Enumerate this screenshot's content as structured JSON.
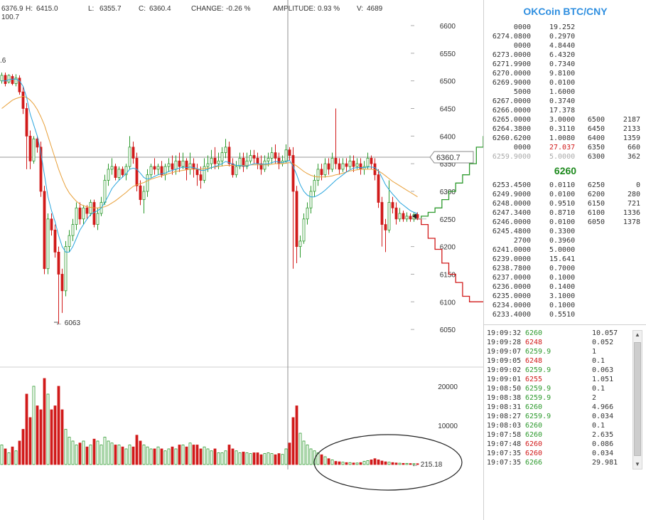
{
  "stats": {
    "open": "6376.9",
    "high_label": "H:",
    "high": "6415.0",
    "low_label": "L:",
    "low": "6355.7",
    "close_label": "C:",
    "close": "6360.4",
    "change_label": "CHANGE:",
    "change": "-0.26 %",
    "amplitude_label": "AMPLITUDE:",
    "amplitude": "0.93 %",
    "volume_label": "V:",
    "volume": "4689",
    "line2": "100.7",
    "line3": ".6"
  },
  "crosshair_price": "6360.7",
  "low_marker": "← 6063",
  "volume_marker": "← 215.18",
  "colors": {
    "up": "#2d9a2d",
    "down": "#d11a1a",
    "ma_fast": "#2aa6de",
    "ma_slow": "#e8a03a",
    "title": "#2f8fe0"
  },
  "chart_data": {
    "type": "candlestick",
    "price_ticks": [
      6600,
      6550,
      6500,
      6450,
      6400,
      6350,
      6300,
      6250,
      6200,
      6150,
      6100,
      6050
    ],
    "volume_ticks": [
      20000,
      10000
    ],
    "candles": [
      [
        6500,
        6510,
        6495,
        6515
      ],
      [
        6510,
        6495,
        6490,
        6515
      ],
      [
        6498,
        6510,
        6495,
        6512
      ],
      [
        6508,
        6495,
        6492,
        6512
      ],
      [
        6495,
        6505,
        6490,
        6512
      ],
      [
        6505,
        6480,
        6475,
        6510
      ],
      [
        6480,
        6450,
        6440,
        6490
      ],
      [
        6450,
        6400,
        6340,
        6460
      ],
      [
        6400,
        6355,
        6340,
        6410
      ],
      [
        6355,
        6395,
        6350,
        6400
      ],
      [
        6395,
        6380,
        6370,
        6400
      ],
      [
        6380,
        6300,
        6290,
        6390
      ],
      [
        6300,
        6160,
        6150,
        6310
      ],
      [
        6160,
        6250,
        6150,
        6260
      ],
      [
        6250,
        6230,
        6220,
        6260
      ],
      [
        6230,
        6190,
        6180,
        6240
      ],
      [
        6190,
        6150,
        6060,
        6200
      ],
      [
        6150,
        6120,
        6080,
        6160
      ],
      [
        6120,
        6200,
        6110,
        6210
      ],
      [
        6200,
        6220,
        6190,
        6230
      ],
      [
        6220,
        6240,
        6210,
        6250
      ],
      [
        6240,
        6270,
        6230,
        6280
      ],
      [
        6270,
        6250,
        6240,
        6280
      ],
      [
        6250,
        6270,
        6240,
        6275
      ],
      [
        6270,
        6260,
        6250,
        6275
      ],
      [
        6260,
        6280,
        6255,
        6285
      ],
      [
        6280,
        6240,
        6235,
        6285
      ],
      [
        6240,
        6260,
        6230,
        6270
      ],
      [
        6260,
        6280,
        6255,
        6290
      ],
      [
        6280,
        6320,
        6275,
        6330
      ],
      [
        6320,
        6340,
        6310,
        6350
      ],
      [
        6340,
        6345,
        6330,
        6360
      ],
      [
        6345,
        6325,
        6320,
        6350
      ],
      [
        6325,
        6340,
        6320,
        6345
      ],
      [
        6340,
        6330,
        6325,
        6345
      ],
      [
        6330,
        6345,
        6320,
        6350
      ],
      [
        6345,
        6380,
        6340,
        6400
      ],
      [
        6380,
        6360,
        6350,
        6390
      ],
      [
        6360,
        6310,
        6300,
        6370
      ],
      [
        6310,
        6285,
        6275,
        6320
      ],
      [
        6285,
        6300,
        6260,
        6310
      ],
      [
        6300,
        6330,
        6290,
        6340
      ],
      [
        6330,
        6345,
        6325,
        6350
      ],
      [
        6345,
        6340,
        6330,
        6360
      ],
      [
        6340,
        6345,
        6330,
        6350
      ],
      [
        6345,
        6330,
        6325,
        6355
      ],
      [
        6330,
        6345,
        6320,
        6350
      ],
      [
        6345,
        6350,
        6335,
        6360
      ],
      [
        6350,
        6340,
        6330,
        6365
      ],
      [
        6340,
        6355,
        6330,
        6365
      ],
      [
        6355,
        6345,
        6335,
        6370
      ],
      [
        6345,
        6355,
        6340,
        6370
      ],
      [
        6355,
        6340,
        6320,
        6360
      ],
      [
        6340,
        6350,
        6330,
        6370
      ],
      [
        6350,
        6340,
        6325,
        6360
      ],
      [
        6340,
        6330,
        6310,
        6350
      ],
      [
        6330,
        6320,
        6305,
        6345
      ],
      [
        6320,
        6345,
        6315,
        6360
      ],
      [
        6345,
        6350,
        6335,
        6365
      ],
      [
        6350,
        6360,
        6340,
        6375
      ],
      [
        6360,
        6350,
        6340,
        6380
      ],
      [
        6350,
        6355,
        6340,
        6370
      ],
      [
        6355,
        6370,
        6345,
        6380
      ],
      [
        6370,
        6380,
        6360,
        6395
      ],
      [
        6380,
        6350,
        6345,
        6390
      ],
      [
        6350,
        6330,
        6325,
        6360
      ],
      [
        6330,
        6345,
        6325,
        6355
      ],
      [
        6345,
        6360,
        6340,
        6370
      ],
      [
        6360,
        6345,
        6335,
        6370
      ],
      [
        6345,
        6355,
        6340,
        6370
      ],
      [
        6355,
        6365,
        6350,
        6375
      ],
      [
        6365,
        6360,
        6350,
        6375
      ],
      [
        6360,
        6350,
        6340,
        6370
      ],
      [
        6350,
        6340,
        6330,
        6365
      ],
      [
        6340,
        6355,
        6335,
        6365
      ],
      [
        6355,
        6360,
        6345,
        6370
      ],
      [
        6360,
        6370,
        6350,
        6380
      ],
      [
        6370,
        6360,
        6350,
        6385
      ],
      [
        6360,
        6350,
        6340,
        6370
      ],
      [
        6350,
        6355,
        6345,
        6365
      ],
      [
        6355,
        6375,
        6350,
        6385
      ],
      [
        6375,
        6365,
        6355,
        6380
      ],
      [
        6365,
        6300,
        6160,
        6380
      ],
      [
        6300,
        6200,
        6170,
        6310
      ],
      [
        6200,
        6210,
        6180,
        6220
      ],
      [
        6210,
        6250,
        6205,
        6260
      ],
      [
        6250,
        6270,
        6240,
        6280
      ],
      [
        6270,
        6300,
        6260,
        6310
      ],
      [
        6300,
        6320,
        6290,
        6330
      ],
      [
        6320,
        6340,
        6310,
        6350
      ],
      [
        6340,
        6330,
        6320,
        6350
      ],
      [
        6330,
        6350,
        6325,
        6360
      ],
      [
        6350,
        6340,
        6330,
        6360
      ],
      [
        6340,
        6360,
        6335,
        6370
      ],
      [
        6360,
        6350,
        6340,
        6450
      ],
      [
        6350,
        6340,
        6330,
        6360
      ],
      [
        6340,
        6350,
        6335,
        6360
      ],
      [
        6350,
        6345,
        6335,
        6360
      ],
      [
        6345,
        6355,
        6340,
        6365
      ],
      [
        6355,
        6345,
        6335,
        6365
      ],
      [
        6345,
        6350,
        6340,
        6360
      ],
      [
        6350,
        6340,
        6330,
        6360
      ],
      [
        6340,
        6345,
        6330,
        6355
      ],
      [
        6345,
        6360,
        6340,
        6370
      ],
      [
        6360,
        6350,
        6340,
        6365
      ],
      [
        6350,
        6330,
        6320,
        6360
      ],
      [
        6330,
        6280,
        6270,
        6340
      ],
      [
        6280,
        6240,
        6200,
        6290
      ],
      [
        6240,
        6230,
        6190,
        6250
      ],
      [
        6230,
        6280,
        6225,
        6320
      ],
      [
        6280,
        6270,
        6260,
        6290
      ],
      [
        6270,
        6250,
        6240,
        6280
      ],
      [
        6250,
        6260,
        6245,
        6270
      ],
      [
        6260,
        6250,
        6245,
        6265
      ],
      [
        6250,
        6255,
        6245,
        6262
      ],
      [
        6255,
        6250,
        6245,
        6260
      ],
      [
        6250,
        6258,
        6245,
        6262
      ],
      [
        6258,
        6252,
        6248,
        6262
      ]
    ],
    "volumes": [
      5000,
      4000,
      3000,
      4500,
      3500,
      6000,
      9000,
      18000,
      12000,
      20000,
      15000,
      14000,
      22000,
      18000,
      14000,
      15000,
      20000,
      14000,
      9000,
      7000,
      6000,
      5000,
      5500,
      6000,
      4500,
      5000,
      6500,
      6000,
      5000,
      7000,
      6000,
      5500,
      5000,
      5000,
      4500,
      4000,
      5000,
      4500,
      7500,
      6000,
      5000,
      4500,
      4000,
      4000,
      4500,
      4000,
      3500,
      4000,
      4500,
      4000,
      5000,
      5000,
      4500,
      5500,
      5000,
      5000,
      4000,
      4500,
      4000,
      3500,
      4000,
      3000,
      3000,
      3500,
      5000,
      4000,
      3500,
      3000,
      3200,
      3000,
      2800,
      3000,
      3000,
      2500,
      2800,
      3000,
      2800,
      2500,
      2800,
      2600,
      4000,
      5500,
      12000,
      15000,
      8000,
      6000,
      5000,
      4000,
      3500,
      3000,
      2500,
      2000,
      1500,
      1200,
      800,
      700,
      600,
      500,
      500,
      400,
      400,
      500,
      800,
      1000,
      1200,
      1500,
      1200,
      900,
      700,
      600,
      500,
      400,
      350,
      300,
      300,
      250,
      220,
      215
    ],
    "ma_fast": [
      6500,
      6500,
      6502,
      6503,
      6503,
      6500,
      6490,
      6470,
      6440,
      6420,
      6400,
      6370,
      6330,
      6290,
      6265,
      6245,
      6220,
      6200,
      6190,
      6190,
      6200,
      6215,
      6230,
      6240,
      6250,
      6258,
      6262,
      6265,
      6270,
      6280,
      6292,
      6305,
      6313,
      6320,
      6326,
      6332,
      6340,
      6342,
      6340,
      6333,
      6325,
      6322,
      6324,
      6327,
      6330,
      6332,
      6333,
      6336,
      6338,
      6340,
      6342,
      6344,
      6343,
      6344,
      6343,
      6341,
      6338,
      6338,
      6340,
      6343,
      6345,
      6347,
      6350,
      6354,
      6352,
      6349,
      6347,
      6347,
      6346,
      6346,
      6348,
      6350,
      6350,
      6349,
      6349,
      6350,
      6352,
      6354,
      6353,
      6352,
      6354,
      6356,
      6345,
      6330,
      6312,
      6300,
      6293,
      6290,
      6290,
      6293,
      6297,
      6302,
      6308,
      6314,
      6320,
      6325,
      6330,
      6335,
      6339,
      6342,
      6343,
      6343,
      6343,
      6344,
      6344,
      6343,
      6337,
      6325,
      6312,
      6303,
      6295,
      6288,
      6280,
      6275,
      6270,
      6265,
      6262,
      6260
    ],
    "ma_slow": [
      6450,
      6455,
      6460,
      6465,
      6468,
      6470,
      6472,
      6470,
      6465,
      6458,
      6448,
      6435,
      6420,
      6400,
      6380,
      6360,
      6340,
      6323,
      6308,
      6297,
      6289,
      6282,
      6277,
      6274,
      6272,
      6271,
      6270,
      6270,
      6271,
      6272,
      6275,
      6279,
      6283,
      6288,
      6293,
      6298,
      6304,
      6309,
      6312,
      6314,
      6316,
      6319,
      6322,
      6324,
      6326,
      6328,
      6330,
      6332,
      6334,
      6336,
      6337,
      6338,
      6339,
      6340,
      6340,
      6340,
      6340,
      6341,
      6342,
      6343,
      6344,
      6345,
      6346,
      6347,
      6347,
      6347,
      6347,
      6347,
      6347,
      6347,
      6348,
      6348,
      6348,
      6348,
      6348,
      6348,
      6349,
      6350,
      6350,
      6350,
      6351,
      6352,
      6350,
      6346,
      6341,
      6336,
      6332,
      6329,
      6327,
      6326,
      6326,
      6326,
      6327,
      6328,
      6330,
      6331,
      6333,
      6335,
      6337,
      6338,
      6339,
      6340,
      6340,
      6340,
      6340,
      6339,
      6337,
      6333,
      6328,
      6323,
      6318,
      6314,
      6310,
      6306,
      6302,
      6298,
      6294,
      6290
    ],
    "depth_bid": [
      [
        0,
        6250
      ],
      [
        10,
        6255
      ],
      [
        20,
        6262
      ],
      [
        30,
        6270
      ],
      [
        40,
        6285
      ],
      [
        50,
        6300
      ],
      [
        60,
        6315
      ],
      [
        70,
        6330
      ],
      [
        80,
        6350
      ],
      [
        90,
        6380
      ],
      [
        100,
        6400
      ],
      [
        100,
        6400
      ]
    ],
    "depth_ask": [
      [
        0,
        6250
      ],
      [
        10,
        6240
      ],
      [
        20,
        6215
      ],
      [
        30,
        6195
      ],
      [
        40,
        6170
      ],
      [
        50,
        6150
      ],
      [
        60,
        6135
      ],
      [
        70,
        6110
      ],
      [
        80,
        6100
      ],
      [
        100,
        6100
      ]
    ]
  },
  "panel": {
    "title": "OKCoin BTC/CNY",
    "sell_orders": [
      [
        "0000",
        "19.252",
        "",
        ""
      ],
      [
        "6274.0800",
        "0.2970",
        "",
        ""
      ],
      [
        "0000",
        "4.8440",
        "",
        ""
      ],
      [
        "6273.0000",
        "6.4320",
        "",
        ""
      ],
      [
        "6271.9900",
        "0.7340",
        "",
        ""
      ],
      [
        "6270.0000",
        "9.8100",
        "",
        ""
      ],
      [
        "6269.9000",
        "0.0100",
        "",
        ""
      ],
      [
        "5000",
        "1.6000",
        "",
        ""
      ],
      [
        "6267.0000",
        "0.3740",
        "",
        ""
      ],
      [
        "6266.0000",
        "17.378",
        "",
        ""
      ],
      [
        "6265.0000",
        "3.0000",
        "6500",
        "2187"
      ],
      [
        "6264.3800",
        "0.3110",
        "6450",
        "2133"
      ],
      [
        "6260.6200",
        "1.0080",
        "6400",
        "1359"
      ],
      [
        "0000",
        "27.037",
        "6350",
        "660"
      ],
      [
        "6259.9000",
        "5.0000",
        "6300",
        "362"
      ]
    ],
    "last_price": "6260",
    "buy_orders": [
      [
        "6253.4500",
        "0.0110",
        "6250",
        "0"
      ],
      [
        "6249.9000",
        "0.0100",
        "6200",
        "280"
      ],
      [
        "6248.0000",
        "0.9510",
        "6150",
        "721"
      ],
      [
        "6247.3400",
        "0.8710",
        "6100",
        "1336"
      ],
      [
        "6246.0000",
        "0.0100",
        "6050",
        "1378"
      ],
      [
        "6245.4800",
        "0.3300",
        "",
        ""
      ],
      [
        "2700",
        "0.3960",
        "",
        ""
      ],
      [
        "6241.0000",
        "5.0000",
        "",
        ""
      ],
      [
        "6239.0000",
        "15.641",
        "",
        ""
      ],
      [
        "6238.7800",
        "0.7000",
        "",
        ""
      ],
      [
        "6237.0000",
        "0.1000",
        "",
        ""
      ],
      [
        "6236.0000",
        "0.1400",
        "",
        ""
      ],
      [
        "6235.0000",
        "3.1000",
        "",
        ""
      ],
      [
        "6234.0000",
        "0.1000",
        "",
        ""
      ],
      [
        "6233.4000",
        "0.5510",
        "",
        ""
      ]
    ],
    "trades": [
      [
        "19:09:32",
        "6260",
        "10.057",
        "up"
      ],
      [
        "19:09:28",
        "6248",
        "0.052",
        "down"
      ],
      [
        "19:09:07",
        "6259.9",
        "1",
        "up"
      ],
      [
        "19:09:05",
        "6248",
        "0.1",
        "down"
      ],
      [
        "19:09:02",
        "6259.9",
        "0.063",
        "up"
      ],
      [
        "19:09:01",
        "6255",
        "1.051",
        "down"
      ],
      [
        "19:08:50",
        "6259.9",
        "0.1",
        "up"
      ],
      [
        "19:08:38",
        "6259.9",
        "2",
        "up"
      ],
      [
        "19:08:31",
        "6260",
        "4.966",
        "up"
      ],
      [
        "19:08:27",
        "6259.9",
        "0.034",
        "up"
      ],
      [
        "19:08:03",
        "6260",
        "0.1",
        "up"
      ],
      [
        "19:07:58",
        "6260",
        "2.635",
        "up"
      ],
      [
        "19:07:48",
        "6260",
        "0.086",
        "down"
      ],
      [
        "19:07:35",
        "6260",
        "0.034",
        "down"
      ],
      [
        "19:07:35",
        "6266",
        "29.981",
        "up"
      ]
    ]
  }
}
